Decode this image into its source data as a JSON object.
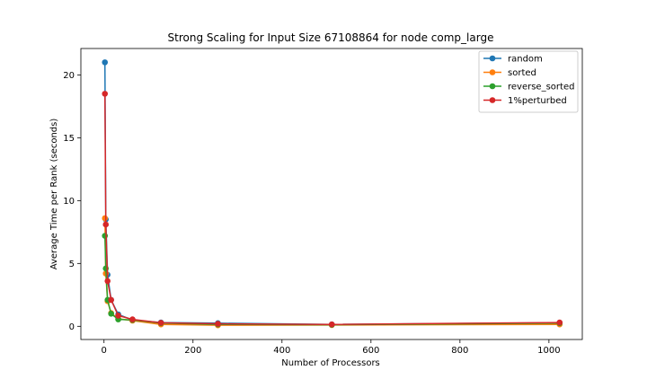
{
  "chart_data": {
    "type": "line",
    "title": "Strong Scaling for Input Size 67108864 for node comp_large",
    "xlabel": "Number of Processors",
    "ylabel": "Average Time per Rank (seconds)",
    "xlim": [
      -52,
      1075
    ],
    "ylim": [
      -1.05,
      22.1
    ],
    "xticks": [
      0,
      200,
      400,
      600,
      800,
      1000
    ],
    "yticks": [
      0,
      5,
      10,
      15,
      20
    ],
    "grid": false,
    "legend_position": "top-right",
    "x": [
      2,
      4,
      8,
      16,
      32,
      64,
      128,
      256,
      512,
      1024
    ],
    "series": [
      {
        "name": "random",
        "color": "#1f77b4",
        "values": [
          21.0,
          8.5,
          4.1,
          2.1,
          0.95,
          0.5,
          0.3,
          0.25,
          0.15,
          0.28
        ]
      },
      {
        "name": "sorted",
        "color": "#ff7f0e",
        "values": [
          8.6,
          4.2,
          2.0,
          1.05,
          0.6,
          0.45,
          0.15,
          0.08,
          0.1,
          0.15
        ]
      },
      {
        "name": "reverse_sorted",
        "color": "#2ca02c",
        "values": [
          7.2,
          4.6,
          2.1,
          1.0,
          0.55,
          0.5,
          0.25,
          0.15,
          0.12,
          0.25
        ]
      },
      {
        "name": "1%perturbed",
        "color": "#d62728",
        "values": [
          18.5,
          8.1,
          3.6,
          2.1,
          0.85,
          0.55,
          0.28,
          0.2,
          0.15,
          0.3
        ]
      }
    ]
  }
}
